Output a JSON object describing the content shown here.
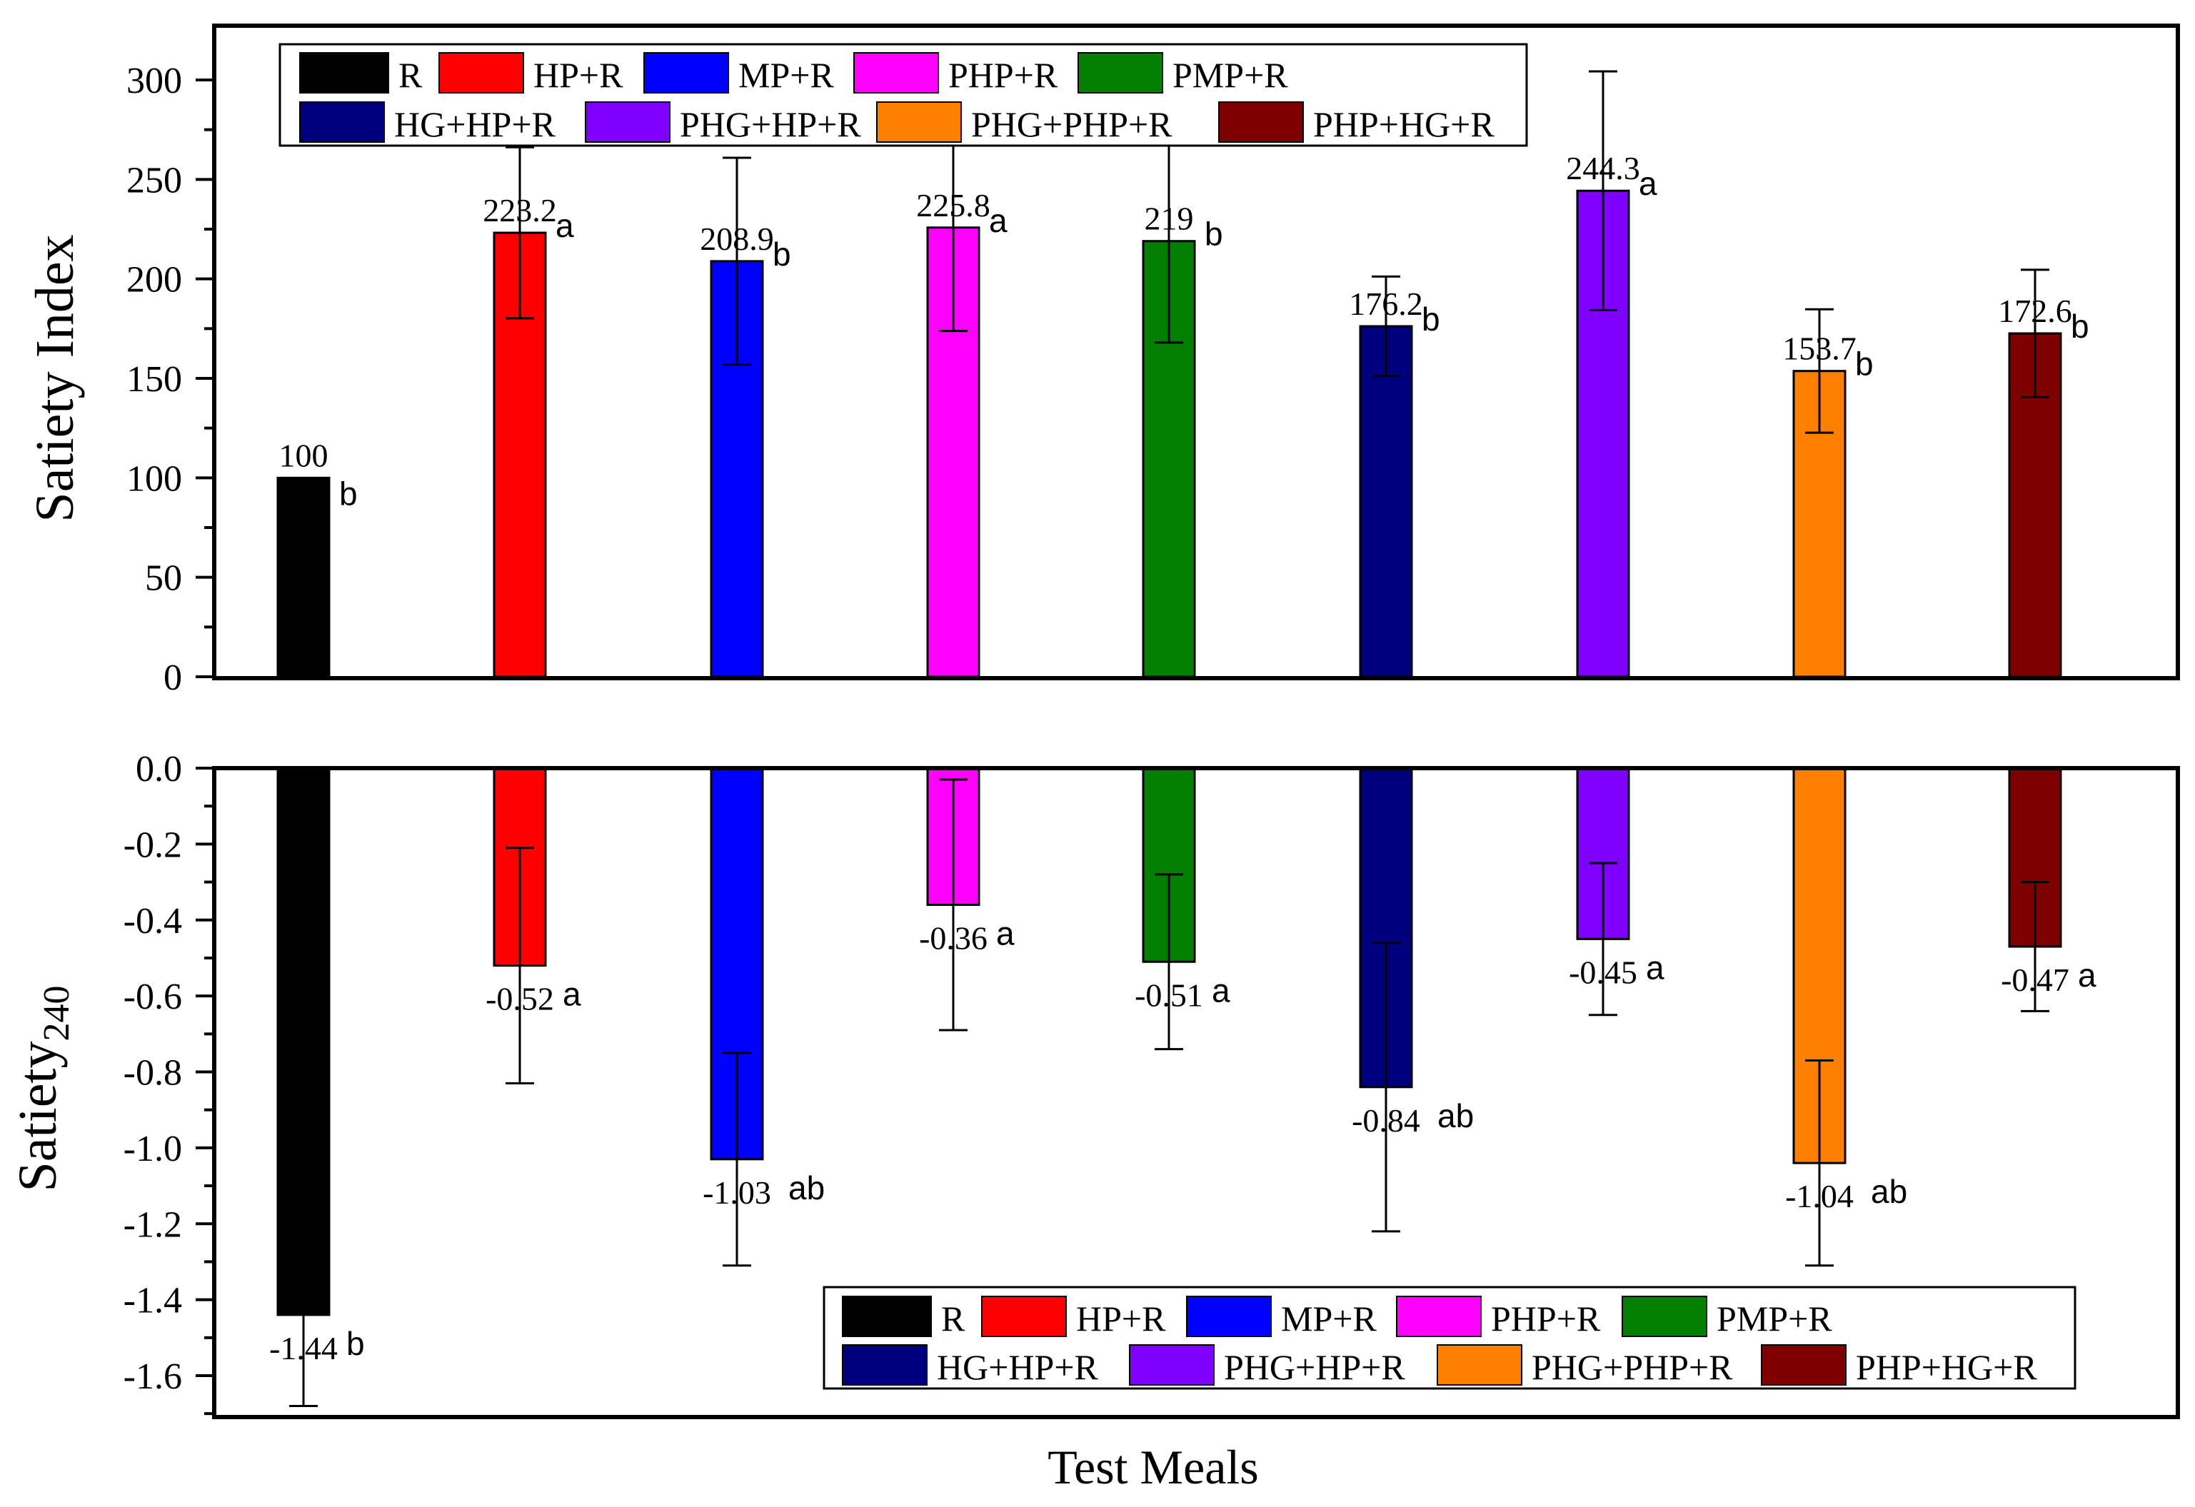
{
  "x_axis_title": "Test Meals",
  "legend_entries": [
    {
      "label": "R",
      "color": "#000000"
    },
    {
      "label": "HP+R",
      "color": "#ff0000"
    },
    {
      "label": "MP+R",
      "color": "#0000ff"
    },
    {
      "label": "PHP+R",
      "color": "#ff00ff"
    },
    {
      "label": "PMP+R",
      "color": "#007f00"
    },
    {
      "label": "HG+HP+R",
      "color": "#00007f"
    },
    {
      "label": "PHG+HP+R",
      "color": "#7f00ff"
    },
    {
      "label": "PHG+PHP+R",
      "color": "#ff7f00"
    },
    {
      "label": "PHP+HG+R",
      "color": "#7f0000"
    }
  ],
  "chart_data": [
    {
      "type": "bar",
      "panel": "top",
      "ylabel": "Satiety Index",
      "xlabel": "Test Meals",
      "ylim": [
        0,
        320
      ],
      "yticks": [
        0,
        50,
        100,
        150,
        200,
        250,
        300
      ],
      "ytick_labels": [
        "0",
        "50",
        "100",
        "150",
        "200",
        "250",
        "300"
      ],
      "grid": false,
      "legend_position": "top-left",
      "categories": [
        "R",
        "HP+R",
        "MP+R",
        "PHP+R",
        "PMP+R",
        "HG+HP+R",
        "PHG+HP+R",
        "PHG+PHP+R",
        "PHP+HG+R"
      ],
      "values": [
        100,
        223.2,
        208.9,
        225.8,
        219,
        176.2,
        244.3,
        153.7,
        172.6
      ],
      "value_labels": [
        "100",
        "223.2",
        "208.9",
        "225.8",
        "219",
        "176.2",
        "244.3",
        "153.7",
        "172.6"
      ],
      "errors": [
        0,
        43,
        52,
        52,
        51,
        25,
        60,
        31,
        32
      ],
      "significance_letters": [
        "b",
        "a",
        "b",
        "a",
        "b",
        "b",
        "a",
        "b",
        "b"
      ]
    },
    {
      "type": "bar",
      "panel": "bottom",
      "ylabel_main": "Satiety",
      "ylabel_sub": "240",
      "xlabel": "Test Meals",
      "ylim": [
        -1.7,
        0
      ],
      "yticks": [
        0,
        -0.2,
        -0.4,
        -0.6,
        -0.8,
        -1.0,
        -1.2,
        -1.4,
        -1.6
      ],
      "ytick_labels": [
        "0.0",
        "-0.2",
        "-0.4",
        "-0.6",
        "-0.8",
        "-1.0",
        "-1.2",
        "-1.4",
        "-1.6"
      ],
      "grid": false,
      "legend_position": "bottom-right",
      "categories": [
        "R",
        "HP+R",
        "MP+R",
        "PHP+R",
        "PMP+R",
        "HG+HP+R",
        "PHG+HP+R",
        "PHG+PHP+R",
        "PHP+HG+R"
      ],
      "values": [
        -1.44,
        -0.52,
        -1.03,
        -0.36,
        -0.51,
        -0.84,
        -0.45,
        -1.04,
        -0.47
      ],
      "value_labels": [
        "-1.44",
        "-0.52",
        "-1.03",
        "-0.36",
        "-0.51",
        "-0.84",
        "-0.45",
        "-1.04",
        "-0.47"
      ],
      "errors": [
        0.24,
        0.31,
        0.28,
        0.33,
        0.23,
        0.38,
        0.2,
        0.27,
        0.17
      ],
      "significance_letters": [
        "b",
        "a",
        "ab",
        "a",
        "a",
        "ab",
        "a",
        "ab",
        "a"
      ]
    }
  ]
}
